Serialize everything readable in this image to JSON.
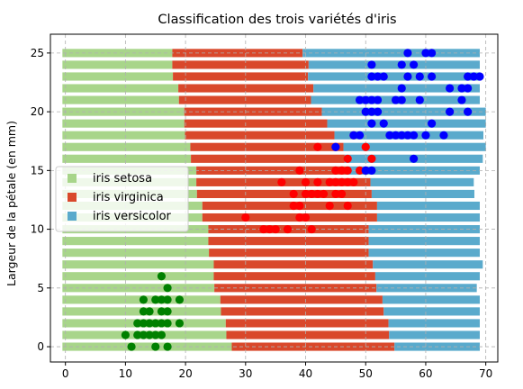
{
  "chart_data": {
    "type": "bar",
    "orientation": "horizontal-stacked",
    "title": "Classification des trois variétés d'iris",
    "xlabel": "",
    "ylabel": "Largeur de la pétale (en mm)",
    "xlim": [
      -2.5,
      72
    ],
    "ylim": [
      -1.3,
      26.6
    ],
    "x_ticks": [
      0,
      10,
      20,
      30,
      40,
      50,
      60,
      70
    ],
    "y_ticks": [
      0,
      5,
      10,
      15,
      20,
      25
    ],
    "grid": true,
    "legend_position": "center-left",
    "colors": {
      "setosa": "#a8d58a",
      "virginica": "#d9482b",
      "versicolor": "#5aaacc",
      "setosa_points": "#008000",
      "virginica_points": "#ff0000",
      "versicolor_points": "#0000ff"
    },
    "categories": [
      0,
      1,
      2,
      3,
      4,
      5,
      6,
      7,
      8,
      9,
      10,
      11,
      12,
      13,
      14,
      15,
      16,
      17,
      18,
      19,
      20,
      21,
      22,
      23,
      24,
      25
    ],
    "series": [
      {
        "name": "iris setosa",
        "key": "setosa",
        "values": [
          28.2,
          27.3,
          27.2,
          26.4,
          26.3,
          25.3,
          25.2,
          25.2,
          24.4,
          24.3,
          24.3,
          23.3,
          23.3,
          22.4,
          22.3,
          22.3,
          21.4,
          21.3,
          20.4,
          20.3,
          20.3,
          19.4,
          19.3,
          18.4,
          18.3,
          18.3
        ]
      },
      {
        "name": "iris virginica",
        "key": "virginica",
        "values": [
          27.1,
          27.1,
          27.1,
          27.1,
          27.0,
          27.0,
          26.9,
          26.5,
          26.6,
          26.7,
          26.7,
          29.1,
          29.1,
          29.1,
          29.0,
          25.1,
          25.6,
          25.5,
          24.9,
          23.8,
          22.9,
          22.0,
          22.5,
          22.5,
          22.7,
          21.7
        ]
      },
      {
        "name": "iris versicolor",
        "key": "versicolor",
        "values": [
          14.2,
          15.1,
          15.2,
          16.0,
          16.2,
          16.7,
          17.4,
          18.3,
          18.5,
          18.5,
          18.5,
          17.1,
          17.1,
          17.1,
          17.2,
          22.1,
          23.0,
          23.7,
          24.8,
          26.4,
          27.3,
          28.1,
          27.7,
          28.6,
          28.5,
          29.5
        ]
      }
    ],
    "bar_start": -0.5,
    "points": {
      "setosa": [
        [
          10,
          1
        ],
        [
          11,
          0
        ],
        [
          12,
          2
        ],
        [
          12,
          1
        ],
        [
          13,
          2
        ],
        [
          13,
          1
        ],
        [
          13,
          3
        ],
        [
          13,
          4
        ],
        [
          14,
          2
        ],
        [
          14,
          1
        ],
        [
          14,
          3
        ],
        [
          15,
          1
        ],
        [
          15,
          2
        ],
        [
          15,
          0
        ],
        [
          15,
          4
        ],
        [
          16,
          1
        ],
        [
          16,
          2
        ],
        [
          16,
          4
        ],
        [
          16,
          6
        ],
        [
          16,
          3
        ],
        [
          17,
          0
        ],
        [
          17,
          2
        ],
        [
          17,
          3
        ],
        [
          17,
          5
        ],
        [
          17,
          4
        ],
        [
          19,
          4
        ],
        [
          19,
          2
        ]
      ],
      "virginica": [
        [
          30,
          11
        ],
        [
          33,
          10
        ],
        [
          34,
          10
        ],
        [
          35,
          10
        ],
        [
          36,
          14
        ],
        [
          37,
          10
        ],
        [
          38,
          13
        ],
        [
          38,
          12
        ],
        [
          39,
          11
        ],
        [
          39,
          12
        ],
        [
          39,
          15
        ],
        [
          40,
          13
        ],
        [
          40,
          11
        ],
        [
          40,
          14
        ],
        [
          41,
          13
        ],
        [
          41,
          10
        ],
        [
          42,
          13
        ],
        [
          42,
          17
        ],
        [
          42,
          14
        ],
        [
          43,
          13
        ],
        [
          44,
          14
        ],
        [
          44,
          12
        ],
        [
          45,
          13
        ],
        [
          45,
          14
        ],
        [
          45,
          15
        ],
        [
          45,
          17
        ],
        [
          46,
          14
        ],
        [
          46,
          15
        ],
        [
          46,
          13
        ],
        [
          47,
          12
        ],
        [
          47,
          14
        ],
        [
          47,
          15
        ],
        [
          47,
          16
        ],
        [
          48,
          14
        ],
        [
          48,
          18
        ],
        [
          49,
          15
        ],
        [
          50,
          17
        ],
        [
          50,
          15
        ],
        [
          51,
          16
        ]
      ],
      "versicolor": [
        [
          45,
          17
        ],
        [
          48,
          18
        ],
        [
          49,
          18
        ],
        [
          49,
          21
        ],
        [
          50,
          20
        ],
        [
          50,
          15
        ],
        [
          50,
          21
        ],
        [
          51,
          15
        ],
        [
          51,
          19
        ],
        [
          51,
          20
        ],
        [
          51,
          21
        ],
        [
          51,
          23
        ],
        [
          51,
          24
        ],
        [
          52,
          20
        ],
        [
          52,
          21
        ],
        [
          52,
          23
        ],
        [
          53,
          19
        ],
        [
          53,
          23
        ],
        [
          54,
          18
        ],
        [
          55,
          18
        ],
        [
          55,
          21
        ],
        [
          56,
          18
        ],
        [
          56,
          21
        ],
        [
          56,
          22
        ],
        [
          56,
          24
        ],
        [
          57,
          18
        ],
        [
          57,
          23
        ],
        [
          57,
          25
        ],
        [
          58,
          16
        ],
        [
          58,
          18
        ],
        [
          58,
          24
        ],
        [
          59,
          23
        ],
        [
          59,
          21
        ],
        [
          60,
          18
        ],
        [
          60,
          25
        ],
        [
          61,
          19
        ],
        [
          61,
          23
        ],
        [
          61,
          25
        ],
        [
          63,
          18
        ],
        [
          64,
          22
        ],
        [
          64,
          20
        ],
        [
          66,
          21
        ],
        [
          66,
          22
        ],
        [
          67,
          22
        ],
        [
          67,
          20
        ],
        [
          67,
          23
        ],
        [
          68,
          23
        ],
        [
          69,
          23
        ]
      ]
    }
  }
}
